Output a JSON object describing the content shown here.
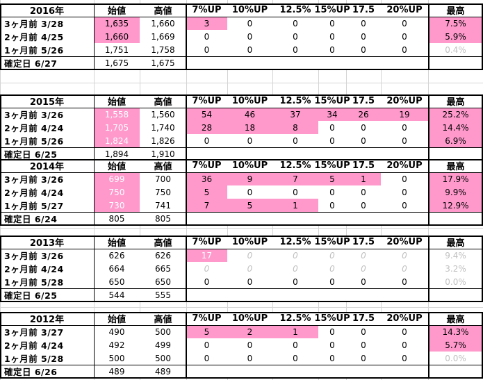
{
  "columns": [
    "始値",
    "高値",
    "7%UP",
    "10%UP",
    "12.5%",
    "15%UP",
    "17.5",
    "20%UP",
    "最高"
  ],
  "blocks": [
    {
      "year": "2016年",
      "rows": [
        {
          "label": "3ヶ月前  3/28",
          "open": "1,635",
          "high": "1,660",
          "c7": "3",
          "c10": "0",
          "c125": "0",
          "c15": "0",
          "c175": "0",
          "c20": "0",
          "max": "7.5%"
        },
        {
          "label": "2ヶ月前  4/25",
          "open": "1,660",
          "high": "1,669",
          "c7": "0",
          "c10": "0",
          "c125": "0",
          "c15": "0",
          "c175": "0",
          "c20": "0",
          "max": "5.9%"
        },
        {
          "label": "1ヶ月前  5/26",
          "open": "1,751",
          "high": "1,758",
          "c7": "0",
          "c10": "0",
          "c125": "0",
          "c15": "0",
          "c175": "0",
          "c20": "0",
          "max": "0.4%"
        },
        {
          "label": "確定日  6/27",
          "open": "1,675",
          "high": "1,675"
        }
      ]
    },
    {
      "year": "2015年",
      "rows": [
        {
          "label": "3ヶ月前  3/26",
          "open": "1,558",
          "high": "1,560",
          "c7": "54",
          "c10": "46",
          "c125": "37",
          "c15": "34",
          "c175": "26",
          "c20": "19",
          "max": "25.2%"
        },
        {
          "label": "2ヶ月前  4/24",
          "open": "1,705",
          "high": "1,740",
          "c7": "28",
          "c10": "18",
          "c125": "8",
          "c15": "0",
          "c175": "0",
          "c20": "0",
          "max": "14.4%"
        },
        {
          "label": "1ヶ月前  5/26",
          "open": "1,824",
          "high": "1,826",
          "c7": "0",
          "c10": "0",
          "c125": "0",
          "c15": "0",
          "c175": "0",
          "c20": "0",
          "max": "6.9%"
        },
        {
          "label": "確定日  6/25",
          "open": "1,894",
          "high": "1,910"
        }
      ]
    },
    {
      "year": "2014年",
      "rows": [
        {
          "label": "3ヶ月前  3/26",
          "open": "699",
          "high": "700",
          "c7": "36",
          "c10": "9",
          "c125": "7",
          "c15": "5",
          "c175": "1",
          "c20": "0",
          "max": "17.9%"
        },
        {
          "label": "2ヶ月前  4/24",
          "open": "750",
          "high": "750",
          "c7": "5",
          "c10": "0",
          "c125": "0",
          "c15": "0",
          "c175": "0",
          "c20": "0",
          "max": "9.9%"
        },
        {
          "label": "1ヶ月前  5/27",
          "open": "730",
          "high": "741",
          "c7": "7",
          "c10": "5",
          "c125": "1",
          "c15": "0",
          "c175": "0",
          "c20": "0",
          "max": "12.9%"
        },
        {
          "label": "確定日  6/24",
          "open": "805",
          "high": "805"
        }
      ]
    },
    {
      "year": "2013年",
      "rows": [
        {
          "label": "3ヶ月前  3/26",
          "open": "626",
          "high": "626",
          "c7": "17",
          "c10": "0",
          "c125": "0",
          "c15": "0",
          "c175": "0",
          "c20": "0",
          "max": "9.4%"
        },
        {
          "label": "2ヶ月前  4/24",
          "open": "664",
          "high": "665",
          "c7": "0",
          "c10": "0",
          "c125": "0",
          "c15": "0",
          "c175": "0",
          "c20": "0",
          "max": "3.2%"
        },
        {
          "label": "1ヶ月前  5/28",
          "open": "650",
          "high": "650",
          "c7": "0",
          "c10": "0",
          "c125": "0",
          "c15": "0",
          "c175": "0",
          "c20": "0",
          "max": "0.0%"
        },
        {
          "label": "確定日  6/25",
          "open": "544",
          "high": "555"
        }
      ]
    },
    {
      "year": "2012年",
      "rows": [
        {
          "label": "3ヶ月前  3/27",
          "open": "490",
          "high": "500",
          "c7": "5",
          "c10": "2",
          "c125": "1",
          "c15": "0",
          "c175": "0",
          "c20": "0",
          "max": "14.3%"
        },
        {
          "label": "2ヶ月前  4/24",
          "open": "492",
          "high": "499",
          "c7": "0",
          "c10": "0",
          "c125": "0",
          "c15": "0",
          "c175": "0",
          "c20": "0",
          "max": "5.7%"
        },
        {
          "label": "1ヶ月前  5/28",
          "open": "500",
          "high": "500",
          "c7": "0",
          "c10": "0",
          "c125": "0",
          "c15": "0",
          "c175": "0",
          "c20": "0",
          "max": "0.0%"
        },
        {
          "label": "確定日  6/26",
          "open": "489",
          "high": "489"
        }
      ]
    }
  ],
  "colors": {
    "highlight": "#ff99cc",
    "muted": "#c0c0c0",
    "grid": "#d4d4d4",
    "border": "#000000"
  }
}
